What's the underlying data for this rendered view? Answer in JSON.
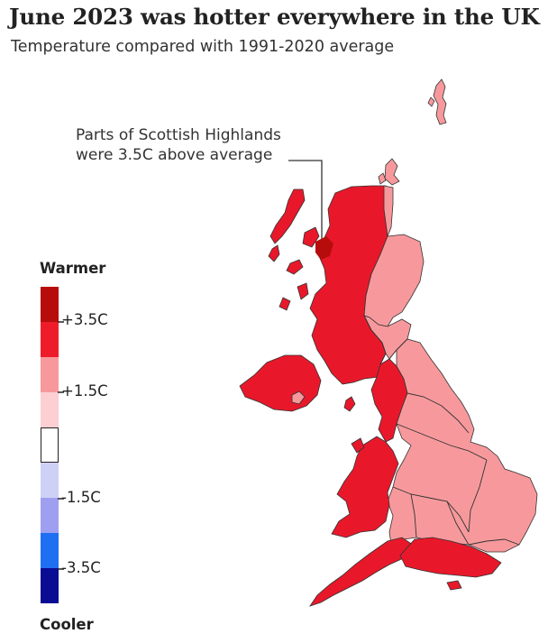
{
  "title": "June 2023 was hotter everywhere in the UK",
  "subtitle": "Temperature compared with 1991-2020 average",
  "annotation": {
    "line1": "Parts of Scottish Highlands",
    "line2": "were 3.5C above average"
  },
  "legend": {
    "top_label": "Warmer",
    "bottom_label": "Cooler",
    "swatches": [
      {
        "color": "#b70c0c",
        "range": "> +3.5C"
      },
      {
        "color": "#ee1c2b",
        "range": "+1.5C to +3.5C"
      },
      {
        "color": "#f7999c",
        "range": "+1.5C"
      },
      {
        "color": "#fccfd2",
        "range": "0 to +1.5C"
      },
      {
        "color": "#ffffff",
        "range": "0"
      },
      {
        "color": "#cfd0f6",
        "range": "0 to -1.5C"
      },
      {
        "color": "#9e9ff0",
        "range": "-1.5C"
      },
      {
        "color": "#1f6ff2",
        "range": "-1.5C to -3.5C"
      },
      {
        "color": "#0b0c94",
        "range": "< -3.5C"
      }
    ],
    "ticks": [
      "+3.5C",
      "+1.5C",
      "-1.5C",
      "-3.5C"
    ]
  },
  "map_colors": {
    "strong_warm": "#e8182a",
    "moderate_warm": "#f7999c",
    "hot_spot": "#b70c0c",
    "border": "#333333"
  }
}
